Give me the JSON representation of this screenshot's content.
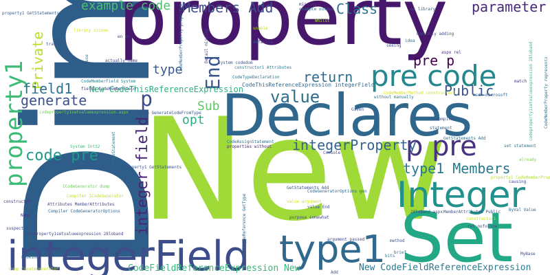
{
  "words": [
    {
      "text": "Dim",
      "color": "#2f5d8a",
      "font": "sans",
      "vertical": true
    },
    {
      "text": "property",
      "color": "#46176a",
      "font": "sans",
      "vertical": false
    },
    {
      "text": "New",
      "color": "#a0da39",
      "font": "sans",
      "vertical": false
    },
    {
      "text": "Declares",
      "color": "#30678d",
      "font": "sans",
      "vertical": false
    },
    {
      "text": "Set",
      "color": "#22a884",
      "font": "sans",
      "vertical": false
    },
    {
      "text": "integerField",
      "color": "#3d4d8a",
      "font": "sans",
      "vertical": false
    },
    {
      "text": "Integer",
      "color": "#21918c",
      "font": "sans",
      "vertical": false
    },
    {
      "text": "type1",
      "color": "#31688e",
      "font": "sans",
      "vertical": false
    },
    {
      "text": "pre code",
      "color": "#24878e",
      "font": "sans",
      "vertical": false
    },
    {
      "text": "p pre",
      "color": "#46327e",
      "font": "sans",
      "vertical": false
    },
    {
      "text": "property1",
      "color": "#3bbb75",
      "font": "mono",
      "vertical": true
    },
    {
      "text": "type1 Members",
      "color": "#2a788e",
      "font": "mono",
      "vertical": false
    },
    {
      "text": "integer field",
      "color": "#482475",
      "font": "mono",
      "vertical": true
    },
    {
      "text": "integerProperty",
      "color": "#33638d",
      "font": "mono",
      "vertical": false
    },
    {
      "text": "value",
      "color": "#2e6e8e",
      "font": "mono",
      "vertical": false
    },
    {
      "text": "code pre",
      "color": "#1f9a8a",
      "font": "mono",
      "vertical": false
    },
    {
      "text": "End",
      "color": "#3a548c",
      "font": "mono",
      "vertical": true
    },
    {
      "text": "Members Add",
      "color": "#3e4a89",
      "font": "mono",
      "vertical": false
    },
    {
      "text": "parameter",
      "color": "#482878",
      "font": "mono",
      "vertical": false
    },
    {
      "text": "example code",
      "color": "#4ac16d",
      "font": "mono",
      "vertical": false
    },
    {
      "text": "Class",
      "color": "#2c718e",
      "font": "mono",
      "vertical": false
    },
    {
      "text": "pre p",
      "color": "#440154",
      "font": "mono",
      "vertical": false
    },
    {
      "text": "return",
      "color": "#2f6c8e",
      "font": "mono",
      "vertical": false
    },
    {
      "text": "Public",
      "color": "#39568c",
      "font": "mono",
      "vertical": false
    },
    {
      "text": "Private",
      "color": "#b8de29",
      "font": "mono",
      "vertical": true
    },
    {
      "text": "field1",
      "color": "#2d708e",
      "font": "mono",
      "vertical": false
    },
    {
      "text": "generate",
      "color": "#3b528b",
      "font": "mono",
      "vertical": false
    },
    {
      "text": "type",
      "color": "#38588c",
      "font": "mono",
      "vertical": false
    },
    {
      "text": "Sub",
      "color": "#5ec962",
      "font": "mono",
      "vertical": false
    },
    {
      "text": "opt",
      "color": "#29af7f",
      "font": "mono",
      "vertical": false
    },
    {
      "text": "p",
      "color": "#3e4c8a",
      "font": "mono",
      "vertical": false
    },
    {
      "text": "New CodeThisReferenceExpression",
      "color": "#2db27d",
      "font": "mono",
      "vertical": false
    },
    {
      "text": "CodeFieldReferenceExpression New",
      "color": "#35b779",
      "font": "mono",
      "vertical": false
    },
    {
      "text": "New CodeFieldReferenceExpression",
      "color": "#2a788e",
      "font": "mono",
      "vertical": false
    },
    {
      "text": "CodeThisReferenceExpression integerField",
      "color": "#31688e",
      "font": "mono",
      "vertical": false
    },
    {
      "text": "property1 GetStatements",
      "color": "#38598c",
      "font": "mono",
      "vertical": false
    },
    {
      "text": "library sizeme",
      "color": "#d6e42b",
      "font": "mono",
      "vertical": false
    },
    {
      "text": "track",
      "color": "#3b528b",
      "font": "mono",
      "vertical": false
    },
    {
      "text": "en us",
      "color": "#404588",
      "font": "mono",
      "vertical": false
    },
    {
      "text": "use",
      "color": "#2f6b8e",
      "font": "mono",
      "vertical": true
    },
    {
      "text": "actually name",
      "color": "#3f4788",
      "font": "mono",
      "vertical": false
    },
    {
      "text": "CodeMemberField System",
      "color": "#26828e",
      "font": "mono",
      "vertical": false
    },
    {
      "text": "field1 CodeMemberField",
      "color": "#414487",
      "font": "mono",
      "vertical": false
    },
    {
      "text": "codeproperty1setvalueexpression.aspx",
      "color": "#6ece58",
      "font": "mono",
      "vertical": false
    },
    {
      "text": "CodeMemberProperty property1",
      "color": "#30678d",
      "font": "mono",
      "vertical": true
    },
    {
      "text": "Detail missing",
      "color": "#404688",
      "font": "mono",
      "vertical": true
    },
    {
      "text": "system codedom",
      "color": "#3b528b",
      "font": "mono",
      "vertical": false
    },
    {
      "text": "constructor1 Attributes",
      "color": "#2a788e",
      "font": "mono",
      "vertical": false
    },
    {
      "text": "CodeTypeDeclaration",
      "color": "#2c728e",
      "font": "mono",
      "vertical": false
    },
    {
      "text": "defaults",
      "color": "#3b528b",
      "font": "mono",
      "vertical": false
    },
    {
      "text": "missing",
      "color": "#453781",
      "font": "mono",
      "vertical": false
    },
    {
      "text": "example output",
      "color": "#2e6f8e",
      "font": "mono",
      "vertical": false
    },
    {
      "text": "Whilst",
      "color": "#a5db36",
      "font": "mono",
      "vertical": false
    },
    {
      "text": "unable",
      "color": "#b5de2b",
      "font": "mono",
      "vertical": false
    },
    {
      "text": "us library",
      "color": "#33638d",
      "font": "mono",
      "vertical": false
    },
    {
      "text": "seeing",
      "color": "#3e4a89",
      "font": "mono",
      "vertical": false
    },
    {
      "text": "idea",
      "color": "#2a768e",
      "font": "mono",
      "vertical": false
    },
    {
      "text": "manually adding",
      "color": "#3e4989",
      "font": "mono",
      "vertical": false
    },
    {
      "text": "aspx rel",
      "color": "#472d7b",
      "font": "mono",
      "vertical": false
    },
    {
      "text": "CodeMemberProperty represents",
      "color": "#2d718e",
      "font": "mono",
      "vertical": true
    },
    {
      "text": "codeproperty1setvalueexpression 28loband",
      "color": "#38b977",
      "font": "mono",
      "vertical": true
    },
    {
      "text": "match",
      "color": "#463480",
      "font": "mono",
      "vertical": false
    },
    {
      "text": "msdn microsoft",
      "color": "#31678e",
      "font": "mono",
      "vertical": false
    },
    {
      "text": "without manually",
      "color": "#2b748e",
      "font": "mono",
      "vertical": false
    },
    {
      "text": "CodeMemberMethod constructor1",
      "color": "#d2e21b",
      "font": "mono",
      "vertical": false
    },
    {
      "text": "Given",
      "color": "#3a538b",
      "font": "mono",
      "vertical": false
    },
    {
      "text": "compiles",
      "color": "#3c508b",
      "font": "mono",
      "vertical": false
    },
    {
      "text": "statement",
      "color": "#31688e",
      "font": "mono",
      "vertical": false
    },
    {
      "text": "GetStatements Add",
      "color": "#2a768e",
      "font": "mono",
      "vertical": false
    },
    {
      "text": "set statement",
      "color": "#2a788e",
      "font": "mono",
      "vertical": false
    },
    {
      "text": "already",
      "color": "#86d549",
      "font": "mono",
      "vertical": false
    },
    {
      "text": "causing",
      "color": "#3f4889",
      "font": "mono",
      "vertical": false
    },
    {
      "text": "property1 CodeMemberProperty",
      "color": "#b2dd2d",
      "font": "mono",
      "vertical": false
    },
    {
      "text": "gen GenerateCodeFromType",
      "color": "#3b528b",
      "font": "mono",
      "vertical": false
    },
    {
      "text": "CodeAssignStatement",
      "color": "#2c738e",
      "font": "mono",
      "vertical": false
    },
    {
      "text": "properties without",
      "color": "#482173",
      "font": "mono",
      "vertical": false
    },
    {
      "text": "Console",
      "color": "#3f4788",
      "font": "mono",
      "vertical": false
    },
    {
      "text": "System Int32",
      "color": "#3dbc74",
      "font": "mono",
      "vertical": false
    },
    {
      "text": "CodeStatement",
      "color": "#2c738e",
      "font": "mono",
      "vertical": true
    },
    {
      "text": "property1 GetStatements",
      "color": "#3a538b",
      "font": "mono",
      "vertical": false
    },
    {
      "text": "ICodeGenerator dump",
      "color": "#6ccd5a",
      "font": "mono",
      "vertical": false
    },
    {
      "text": "Compiler ICodeGenerator",
      "color": "#bddf26",
      "font": "mono",
      "vertical": false
    },
    {
      "text": "constructor",
      "color": "#46337e",
      "font": "mono",
      "vertical": false
    },
    {
      "text": "Attributes MemberAttributes",
      "color": "#3f4788",
      "font": "mono",
      "vertical": false
    },
    {
      "text": "Compiler CodeGeneratorOptions",
      "color": "#33638d",
      "font": "mono",
      "vertical": false
    },
    {
      "text": "Name",
      "color": "#453882",
      "font": "mono",
      "vertical": false
    },
    {
      "text": "suspect",
      "color": "#404688",
      "font": "mono",
      "vertical": false
    },
    {
      "text": "codeproperty1setvalueexpression 28loband",
      "color": "#414487",
      "font": "mono",
      "vertical": false
    },
    {
      "text": "Looking",
      "color": "#2f6c8e",
      "font": "mono",
      "vertical": false
    },
    {
      "text": "CodeTypeReference GetType",
      "color": "#31688e",
      "font": "mono",
      "vertical": true
    },
    {
      "text": "GetStatements Add",
      "color": "#3b528b",
      "font": "mono",
      "vertical": false
    },
    {
      "text": "value argument",
      "color": "#d2e21b",
      "font": "mono",
      "vertical": false
    },
    {
      "text": "CodeGeneratorOptions gen",
      "color": "#31688e",
      "font": "mono",
      "vertical": false
    },
    {
      "text": "value End",
      "color": "#3a548c",
      "font": "mono",
      "vertical": false
    },
    {
      "text": "purpose somewhat",
      "color": "#3f4788",
      "font": "mono",
      "vertical": false
    },
    {
      "text": "argument passed",
      "color": "#404688",
      "font": "mono",
      "vertical": false
    },
    {
      "text": "28loband aspx",
      "color": "#3e4a89",
      "font": "mono",
      "vertical": false
    },
    {
      "text": "MemberAttributes Public",
      "color": "#3d4e8a",
      "font": "mono",
      "vertical": false
    },
    {
      "text": "ByVal Value",
      "color": "#31688e",
      "font": "mono",
      "vertical": false
    },
    {
      "text": "constructor1",
      "color": "#c0df25",
      "font": "mono",
      "vertical": false
    },
    {
      "text": "rel nofollow",
      "color": "#3e4a89",
      "font": "mono",
      "vertical": false
    },
    {
      "text": "method",
      "color": "#3b528b",
      "font": "mono",
      "vertical": false
    },
    {
      "text": "brief",
      "color": "#31688e",
      "font": "mono",
      "vertical": false
    },
    {
      "text": "bits",
      "color": "#2a788e",
      "font": "mono",
      "vertical": false
    },
    {
      "text": "MyBase",
      "color": "#3e4989",
      "font": "mono",
      "vertical": false
    },
    {
      "text": "dump CreateGenerator",
      "color": "#b8de29",
      "font": "mono",
      "vertical": false
    },
    {
      "text": "Add",
      "color": "#3b528b",
      "font": "mono",
      "vertical": false
    }
  ]
}
